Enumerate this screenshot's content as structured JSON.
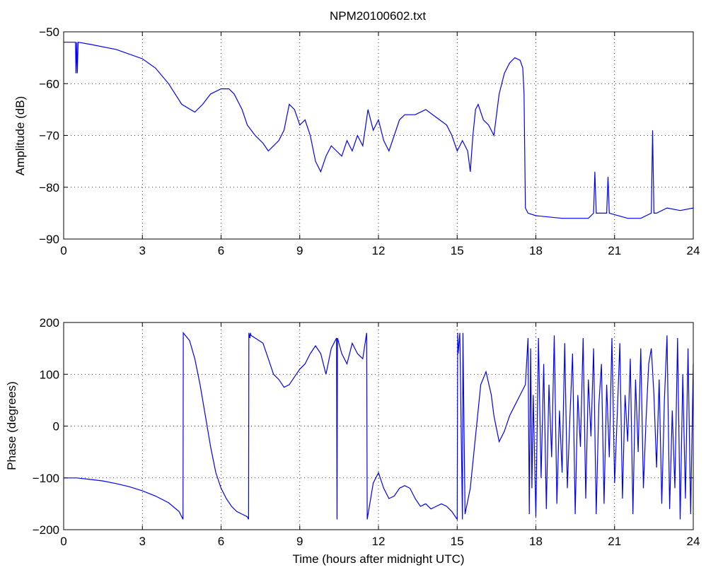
{
  "figure": {
    "title": "NPM20100602.txt",
    "line_color": "#0000ff",
    "grid": "dotted"
  },
  "chart_data": [
    {
      "type": "line",
      "title": "NPM20100602.txt",
      "xlabel": "",
      "ylabel": "Amplitude (dB)",
      "xlim": [
        0,
        24
      ],
      "ylim": [
        -90,
        -50
      ],
      "xticks": [
        0,
        3,
        6,
        9,
        12,
        15,
        18,
        21,
        24
      ],
      "yticks": [
        -90,
        -80,
        -70,
        -60,
        -50
      ],
      "grid": true,
      "series": [
        {
          "color": "#0000ff",
          "x": [
            0,
            0.45,
            0.47,
            0.5,
            0.52,
            0.55,
            1,
            2,
            3,
            3.5,
            4,
            4.5,
            5,
            5.3,
            5.6,
            6,
            6.3,
            6.5,
            6.8,
            7.0,
            7.3,
            7.6,
            7.8,
            8.0,
            8.2,
            8.4,
            8.6,
            8.8,
            9.0,
            9.2,
            9.4,
            9.6,
            9.8,
            10.0,
            10.2,
            10.4,
            10.6,
            10.8,
            11.0,
            11.2,
            11.4,
            11.6,
            11.8,
            12.0,
            12.2,
            12.4,
            12.6,
            12.8,
            13.0,
            13.4,
            13.8,
            14.2,
            14.6,
            14.8,
            15.0,
            15.2,
            15.4,
            15.5,
            15.6,
            15.7,
            15.8,
            16.0,
            16.2,
            16.4,
            16.6,
            16.8,
            17.0,
            17.2,
            17.4,
            17.5,
            17.55,
            17.6,
            17.7,
            18.0,
            19.0,
            20.0,
            20.2,
            20.25,
            20.3,
            20.7,
            20.75,
            20.8,
            21.5,
            22.0,
            22.4,
            22.45,
            22.5,
            22.6,
            23.0,
            23.5,
            24.0
          ],
          "y": [
            -52,
            -52,
            -58,
            -52,
            -58,
            -52,
            -52.4,
            -53.4,
            -55.2,
            -57,
            -60,
            -64,
            -65.5,
            -64,
            -62,
            -61,
            -61,
            -62,
            -65,
            -68,
            -70,
            -71.5,
            -73,
            -72,
            -71,
            -69,
            -64,
            -65,
            -68,
            -67,
            -70,
            -75,
            -77,
            -74,
            -72,
            -73,
            -74,
            -71,
            -73,
            -70,
            -72,
            -65,
            -69,
            -67,
            -71,
            -73,
            -70,
            -67,
            -66,
            -66,
            -65,
            -66.5,
            -68,
            -70,
            -73,
            -71,
            -73,
            -77,
            -70,
            -65,
            -64,
            -67,
            -68,
            -70,
            -62,
            -58,
            -56,
            -55,
            -55.5,
            -57,
            -62,
            -84,
            -85,
            -85.5,
            -86,
            -86,
            -85,
            -77,
            -85,
            -85,
            -78,
            -85,
            -86,
            -86,
            -85,
            -69,
            -85,
            -85,
            -84,
            -84.5,
            -84
          ]
        }
      ]
    },
    {
      "type": "line",
      "title": "",
      "xlabel": "Time (hours after midnight UTC)",
      "ylabel": "Phase (degrees)",
      "xlim": [
        0,
        24
      ],
      "ylim": [
        -200,
        200
      ],
      "xticks": [
        0,
        3,
        6,
        9,
        12,
        15,
        18,
        21,
        24
      ],
      "yticks": [
        -200,
        -100,
        0,
        100,
        200
      ],
      "grid": true,
      "series": [
        {
          "color": "#0000ff",
          "x": [
            0,
            0.5,
            1,
            1.5,
            2,
            2.5,
            3,
            3.5,
            4,
            4.4,
            4.55,
            4.56,
            4.8,
            5.0,
            5.2,
            5.4,
            5.6,
            5.8,
            6.0,
            6.2,
            6.4,
            6.6,
            6.8,
            7.0,
            7.05,
            7.06,
            7.1,
            7.12,
            7.14,
            7.3,
            7.6,
            7.8,
            8.0,
            8.2,
            8.4,
            8.6,
            8.8,
            9.0,
            9.2,
            9.4,
            9.6,
            9.8,
            10.0,
            10.2,
            10.4,
            10.42,
            10.44,
            10.6,
            10.8,
            11.0,
            11.2,
            11.4,
            11.55,
            11.57,
            11.8,
            12.0,
            12.2,
            12.4,
            12.6,
            12.8,
            13.0,
            13.2,
            13.4,
            13.6,
            13.8,
            14.0,
            14.2,
            14.4,
            14.6,
            14.8,
            15.0,
            15.02,
            15.04,
            15.1,
            15.2,
            15.22,
            15.3,
            15.5,
            15.7,
            15.9,
            16.1,
            16.3,
            16.4,
            16.6,
            16.8,
            17.0,
            17.2,
            17.4,
            17.6,
            17.7,
            17.75,
            17.8,
            17.85,
            17.9,
            18.0,
            18.1,
            18.2,
            18.3,
            18.4,
            18.5,
            18.6,
            18.7,
            18.8,
            18.9,
            19.0,
            19.1,
            19.2,
            19.3,
            19.4,
            19.5,
            19.6,
            19.7,
            19.8,
            19.9,
            20.0,
            20.1,
            20.2,
            20.3,
            20.4,
            20.5,
            20.6,
            20.7,
            20.8,
            20.9,
            21.0,
            21.1,
            21.2,
            21.3,
            21.4,
            21.5,
            21.6,
            21.7,
            21.8,
            21.9,
            22.0,
            22.1,
            22.2,
            22.3,
            22.4,
            22.5,
            22.6,
            22.7,
            22.8,
            22.9,
            23.0,
            23.1,
            23.2,
            23.3,
            23.4,
            23.5,
            23.6,
            23.7,
            23.8,
            23.9,
            24.0
          ],
          "y": [
            -100,
            -100,
            -103,
            -106,
            -111,
            -117,
            -125,
            -135,
            -148,
            -165,
            -180,
            180,
            165,
            130,
            80,
            20,
            -40,
            -90,
            -120,
            -140,
            -155,
            -165,
            -170,
            -175,
            -180,
            180,
            170,
            180,
            175,
            170,
            160,
            130,
            100,
            90,
            75,
            80,
            95,
            110,
            120,
            140,
            155,
            140,
            100,
            150,
            170,
            -180,
            170,
            140,
            120,
            160,
            140,
            130,
            180,
            -180,
            -110,
            -90,
            -120,
            -140,
            -135,
            -120,
            -115,
            -120,
            -140,
            -155,
            -150,
            -160,
            -155,
            -150,
            -155,
            -165,
            -180,
            180,
            140,
            180,
            -180,
            180,
            -170,
            -120,
            -20,
            80,
            105,
            60,
            20,
            -30,
            -10,
            20,
            40,
            60,
            80,
            170,
            -170,
            150,
            -120,
            60,
            -175,
            170,
            -100,
            120,
            -160,
            80,
            -60,
            175,
            -150,
            30,
            -90,
            160,
            -120,
            20,
            140,
            -170,
            60,
            -40,
            170,
            -140,
            90,
            -20,
            150,
            -170,
            40,
            120,
            -150,
            80,
            -60,
            170,
            -110,
            20,
            160,
            -140,
            60,
            -30,
            130,
            -170,
            90,
            -50,
            150,
            -120,
            10,
            120,
            150,
            60,
            -80,
            90,
            -150,
            50,
            175,
            -160,
            30,
            -120,
            170,
            -180,
            100,
            -140,
            150,
            -170,
            120
          ]
        }
      ]
    }
  ]
}
